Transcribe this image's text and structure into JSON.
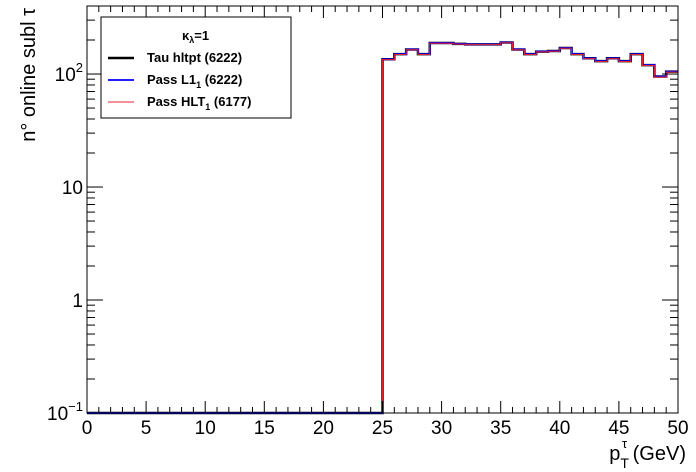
{
  "chart_data": {
    "type": "line",
    "title": "",
    "xlabel": "p_T^τ (GeV)",
    "xlabel_parts": {
      "p": "p",
      "T": "T",
      "tau": "τ",
      "unit": " (GeV)"
    },
    "ylabel": "n° online subl τ",
    "xlim": [
      0,
      50
    ],
    "ylim": [
      0.1,
      400
    ],
    "yscale": "log",
    "grid": false,
    "legend_position": "top-left",
    "x_ticks": [
      "0",
      "5",
      "10",
      "15",
      "20",
      "25",
      "30",
      "35",
      "40",
      "45",
      "50"
    ],
    "y_ticks": [
      {
        "value": 0.1,
        "base": "10",
        "exp": "−1"
      },
      {
        "value": 1,
        "label": "1"
      },
      {
        "value": 10,
        "label": "10"
      },
      {
        "value": 100,
        "base": "10",
        "exp": "2"
      }
    ],
    "bin_edges": [
      0,
      1,
      2,
      3,
      4,
      5,
      6,
      7,
      8,
      9,
      10,
      11,
      12,
      13,
      14,
      15,
      16,
      17,
      18,
      19,
      20,
      21,
      22,
      23,
      24,
      25,
      26,
      27,
      28,
      29,
      30,
      31,
      32,
      33,
      34,
      35,
      36,
      37,
      38,
      39,
      40,
      41,
      42,
      43,
      44,
      45,
      46,
      47,
      48,
      49,
      50
    ],
    "legend_header": {
      "base": "κ",
      "sub": "λ",
      "rest": "=1"
    },
    "series": [
      {
        "name": "Tau hltpt (6222)",
        "legend": {
          "text": "Tau hltpt (6222)",
          "sub": "",
          "rest": ""
        },
        "color": "#000000",
        "line_width": 2.5,
        "values": [
          0.1,
          0.1,
          0.1,
          0.1,
          0.1,
          0.1,
          0.1,
          0.1,
          0.1,
          0.1,
          0.1,
          0.1,
          0.1,
          0.1,
          0.1,
          0.1,
          0.1,
          0.1,
          0.1,
          0.1,
          0.1,
          0.1,
          0.1,
          0.1,
          0.1,
          135,
          150,
          165,
          150,
          188,
          188,
          185,
          183,
          183,
          183,
          190,
          165,
          150,
          158,
          160,
          170,
          150,
          138,
          130,
          138,
          130,
          150,
          120,
          95,
          105
        ]
      },
      {
        "name": "Pass L1₁ (6222)",
        "legend": {
          "text": "Pass L1",
          "sub": "1",
          "rest": " (6222)"
        },
        "color": "#0000ff",
        "line_width": 1.8,
        "values": [
          0.1,
          0.1,
          0.1,
          0.1,
          0.1,
          0.1,
          0.1,
          0.1,
          0.1,
          0.1,
          0.1,
          0.1,
          0.1,
          0.1,
          0.1,
          0.1,
          0.1,
          0.1,
          0.1,
          0.1,
          0.1,
          0.1,
          0.1,
          0.1,
          0.1,
          135,
          150,
          165,
          150,
          188,
          188,
          185,
          183,
          183,
          183,
          190,
          165,
          150,
          158,
          160,
          170,
          150,
          138,
          130,
          138,
          130,
          150,
          120,
          95,
          105
        ]
      },
      {
        "name": "Pass HLT₁ (6177)",
        "legend": {
          "text": "Pass HLT",
          "sub": "1",
          "rest": " (6177)"
        },
        "color": "#e8212f",
        "line_width": 1.0,
        "values": [
          0.1,
          0.1,
          0.1,
          0.1,
          0.1,
          0.1,
          0.1,
          0.1,
          0.1,
          0.1,
          0.1,
          0.1,
          0.1,
          0.1,
          0.1,
          0.1,
          0.1,
          0.1,
          0.1,
          0.1,
          0.1,
          0.1,
          0.1,
          0.1,
          0.1,
          134,
          149,
          164,
          149,
          187,
          187,
          184,
          182,
          182,
          182,
          189,
          164,
          149,
          157,
          159,
          169,
          149,
          137,
          129,
          137,
          129,
          149,
          119,
          94,
          104
        ]
      }
    ]
  }
}
